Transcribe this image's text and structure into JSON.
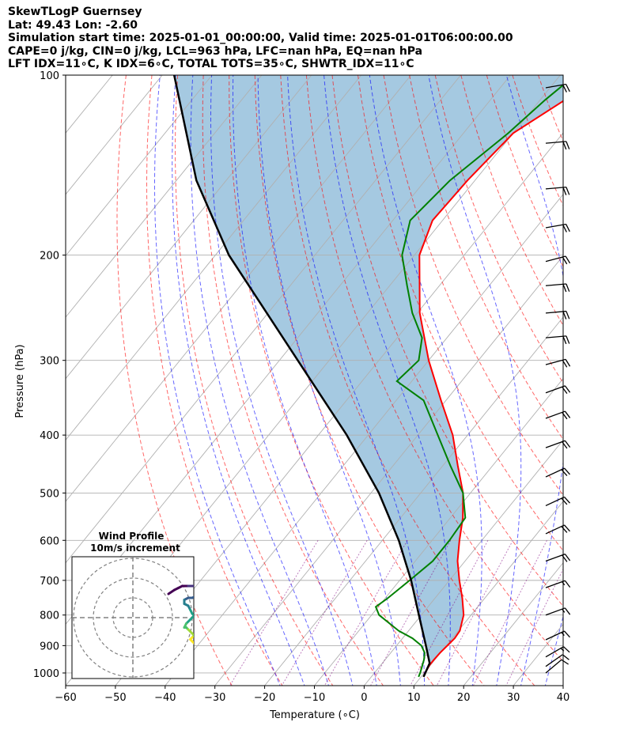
{
  "header": {
    "line1": "SkewTLogP Guernsey",
    "line2": "Lat: 49.43   Lon: -2.60",
    "line3": "Simulation start time: 2025-01-01_00:00:00, Valid time: 2025-01-01T06:00:00.00",
    "line4": "CAPE=0 j/kg, CIN=0 j/kg, LCL=963 hPa, LFC=nan hPa, EQ=nan hPa",
    "line5": "LFT IDX=11∘C, K IDX=6∘C, TOTAL TOTS=35∘C, SHWTR_IDX=11∘C"
  },
  "chart_data": [
    {
      "type": "line",
      "title": "SkewTLogP Guernsey",
      "xlabel": "Temperature (∘C)",
      "ylabel": "Pressure (hPa)",
      "xlim": [
        -60,
        40
      ],
      "ylim": [
        1050,
        100
      ],
      "y_scale": "log",
      "skew": true,
      "grid": true,
      "xticks": [
        -60,
        -50,
        -40,
        -30,
        -20,
        -10,
        0,
        10,
        20,
        30,
        40
      ],
      "yticks": [
        100,
        200,
        300,
        400,
        500,
        600,
        700,
        800,
        900,
        1000
      ],
      "series": [
        {
          "name": "Temperature",
          "color": "#ff0000",
          "pressure": [
            1015,
            1000,
            970,
            950,
            925,
            900,
            875,
            850,
            800,
            750,
            700,
            650,
            600,
            550,
            500,
            450,
            400,
            350,
            300,
            250,
            200,
            175,
            150,
            125,
            110,
            100
          ],
          "values": [
            10.5,
            10.2,
            9.8,
            9.8,
            9.9,
            10.2,
            10.5,
            10.3,
            8.5,
            5.5,
            2.0,
            -1.5,
            -4.5,
            -7.5,
            -11.5,
            -17.0,
            -23.0,
            -31.0,
            -40.0,
            -49.5,
            -59.0,
            -62.0,
            -61.5,
            -60.0,
            -55.0,
            -50.0
          ]
        },
        {
          "name": "Dewpoint",
          "color": "#008000",
          "pressure": [
            1015,
            1000,
            975,
            950,
            925,
            900,
            875,
            850,
            800,
            775,
            750,
            700,
            650,
            600,
            550,
            500,
            450,
            400,
            350,
            325,
            300,
            275,
            250,
            225,
            200,
            175,
            150,
            125,
            110,
            100
          ],
          "values": [
            9.5,
            9.2,
            8.5,
            7.8,
            6.8,
            5.0,
            2.0,
            -2.0,
            -8.5,
            -10.5,
            -9.5,
            -8.0,
            -6.5,
            -6.5,
            -7.0,
            -11.5,
            -18.5,
            -26.0,
            -34.5,
            -43.0,
            -42.0,
            -45.0,
            -51.0,
            -56.5,
            -62.5,
            -66.5,
            -65.0,
            -61.0,
            -59.0,
            -57.0
          ]
        },
        {
          "name": "Parcel profile",
          "color": "#000000",
          "pressure": [
            1015,
            963,
            900,
            800,
            700,
            600,
            500,
            400,
            300,
            200,
            150,
            100
          ],
          "values": [
            10.5,
            9.5,
            5.9,
            -0.5,
            -7.7,
            -16.7,
            -28.4,
            -44.3,
            -66.3,
            -97.3,
            -116.0,
            -137.6
          ]
        }
      ],
      "wind_barbs": {
        "pressure": [
          105,
          130,
          155,
          180,
          205,
          225,
          250,
          275,
          305,
          340,
          375,
          420,
          470,
          525,
          585,
          650,
          720,
          800,
          880,
          940,
          975,
          1000
        ],
        "direction_deg": [
          80,
          85,
          85,
          80,
          75,
          85,
          85,
          85,
          75,
          70,
          70,
          70,
          65,
          65,
          65,
          70,
          70,
          70,
          65,
          60,
          55,
          50
        ],
        "speed_kt": [
          20,
          20,
          20,
          20,
          20,
          20,
          20,
          20,
          20,
          20,
          20,
          20,
          20,
          20,
          20,
          20,
          15,
          15,
          15,
          15,
          10,
          10
        ]
      }
    },
    {
      "type": "scatter",
      "title": "Wind Profile",
      "subtitle": "10m/s increment",
      "ring_increment_ms": 10,
      "u_ms": [
        18,
        21,
        23,
        25,
        28,
        31,
        32,
        33,
        32,
        30,
        28,
        26,
        26,
        28,
        29,
        30,
        31,
        29,
        27,
        26,
        27,
        28,
        29,
        30,
        31,
        30,
        29,
        30,
        31
      ],
      "v_ms": [
        12,
        14,
        15,
        16,
        16,
        16,
        15,
        13,
        11,
        10,
        10,
        9,
        7,
        6,
        4,
        2,
        1,
        -1,
        -3,
        -5,
        -5,
        -6,
        -7,
        -8,
        -9,
        -10,
        -11,
        -12,
        -13
      ],
      "color_scale": "viridis"
    }
  ]
}
